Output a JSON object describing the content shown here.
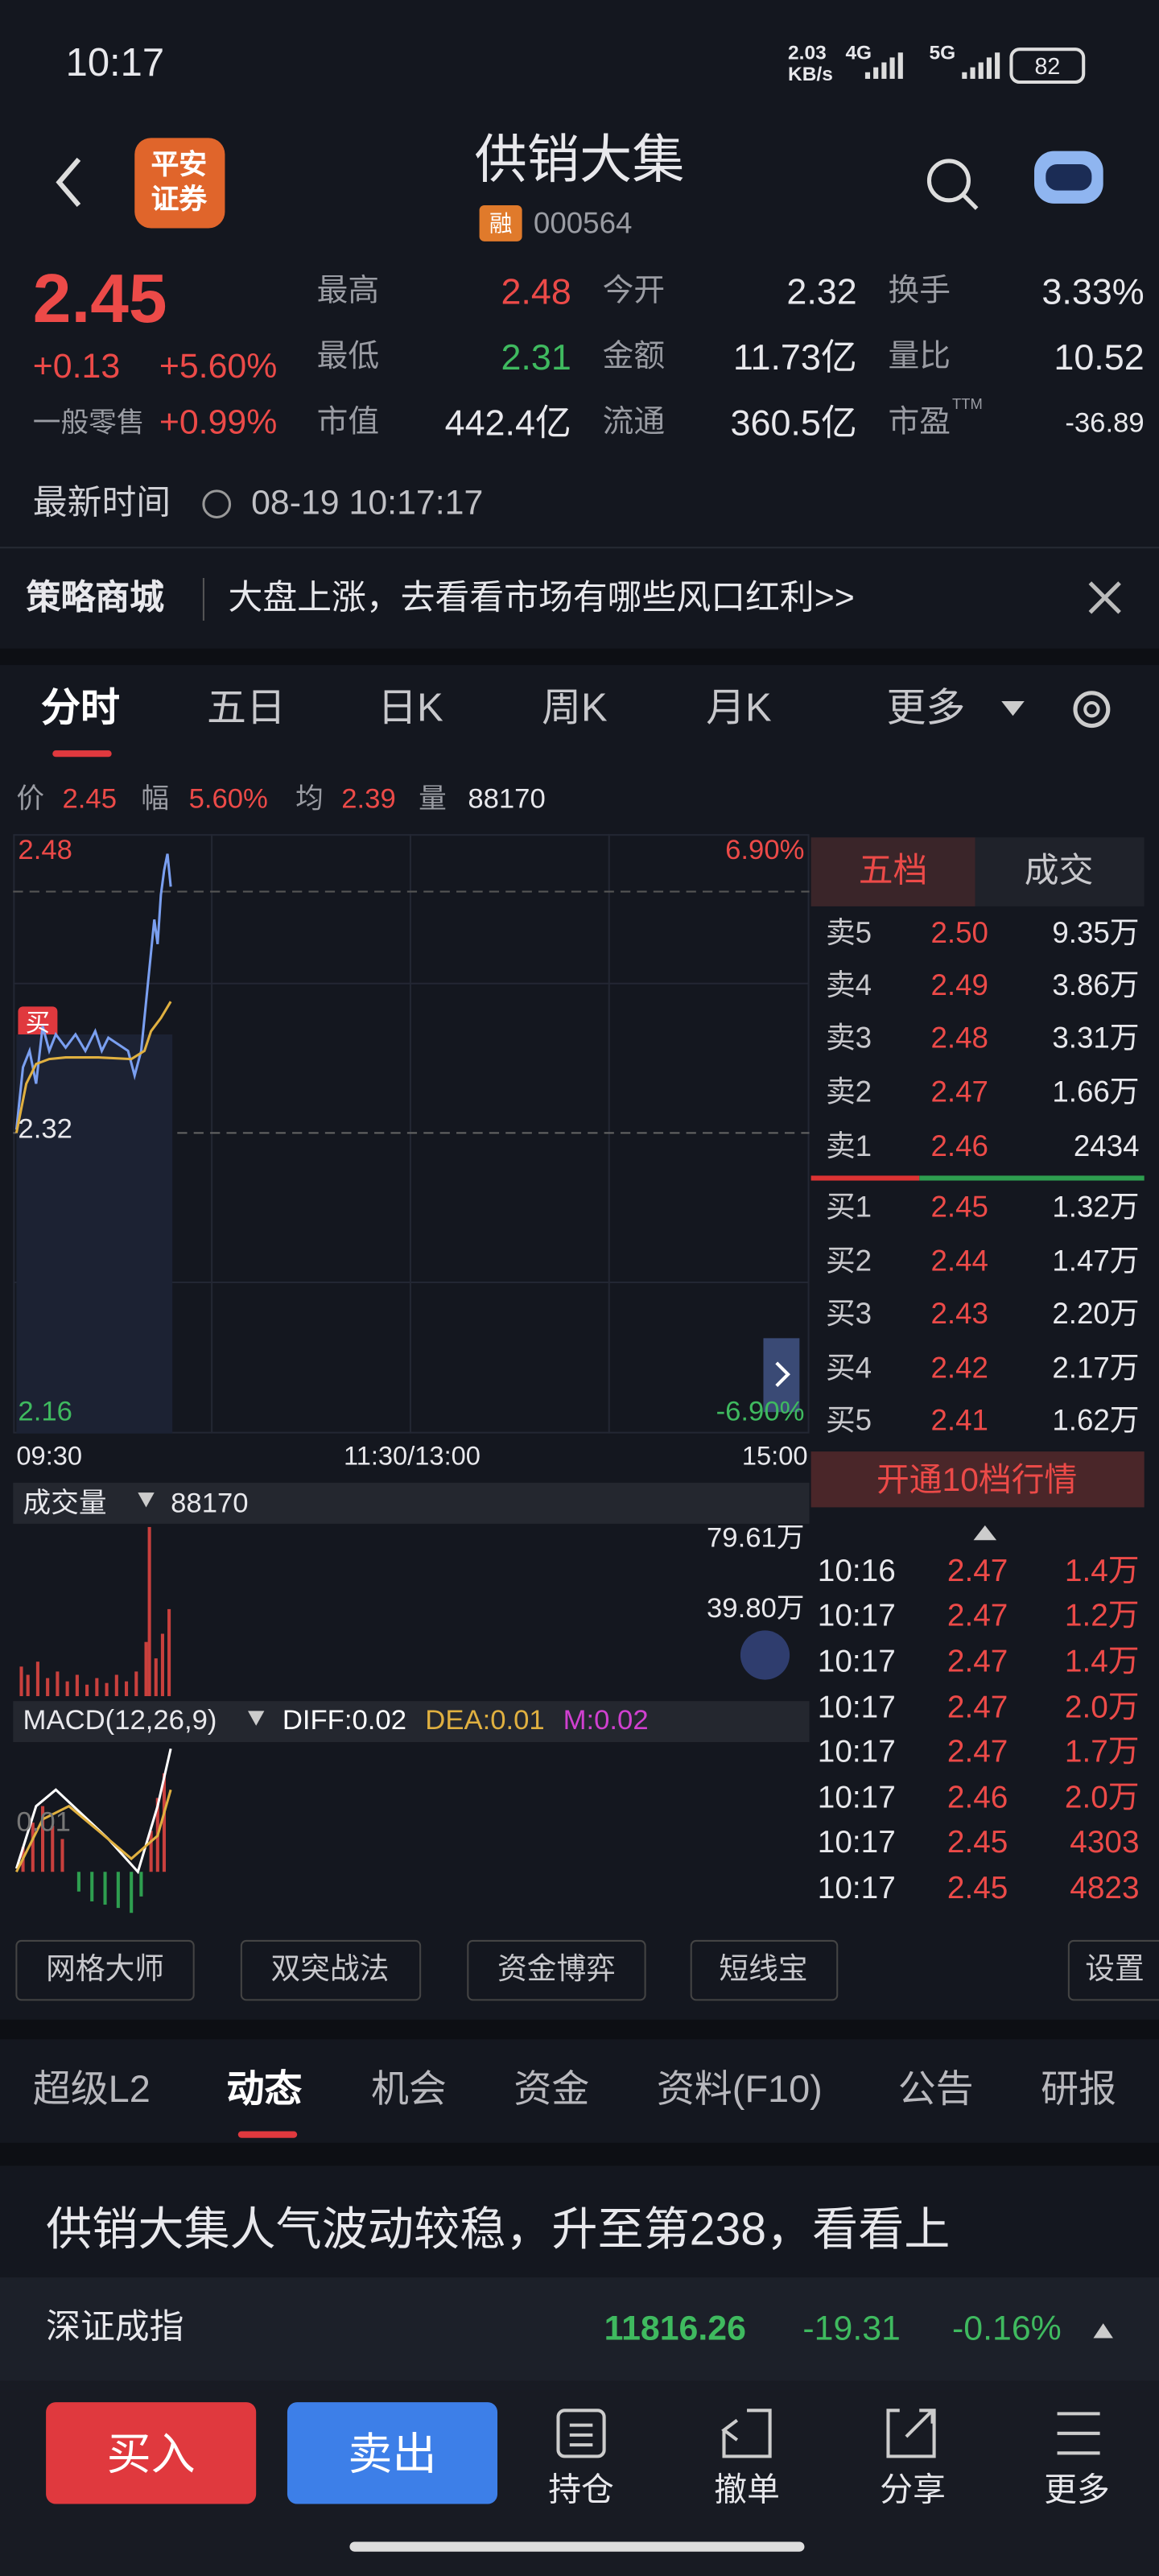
{
  "status_bar": {
    "time": "10:17",
    "net_speed": "2.03",
    "net_unit": "KB/s",
    "signal_a": "4G",
    "signal_b": "5G",
    "battery": "82"
  },
  "header": {
    "broker_line1": "平安",
    "broker_line2": "证券",
    "title": "供销大集",
    "margin_badge": "融",
    "code": "000564"
  },
  "quote": {
    "price": "2.45",
    "change": "+0.13",
    "change_pct": "+5.60%",
    "sector": "一般零售",
    "sector_pct": "+0.99%",
    "stats": [
      {
        "label": "最高",
        "value": "2.48"
      },
      {
        "label": "最低",
        "value": "2.31"
      },
      {
        "label": "市值",
        "value": "442.4亿"
      },
      {
        "label": "今开",
        "value": "2.32"
      },
      {
        "label": "金额",
        "value": "11.73亿"
      },
      {
        "label": "流通",
        "value": "360.5亿"
      },
      {
        "label": "换手",
        "value": "3.33%"
      },
      {
        "label": "量比",
        "value": "10.52"
      },
      {
        "label": "市盈",
        "value": "-36.89",
        "sup": "TTM"
      }
    ],
    "time_label": "最新时间",
    "time": "08-19 10:17:17"
  },
  "banner": {
    "label": "策略商城",
    "text": "大盘上涨，去看看市场有哪些风口红利>>"
  },
  "chart_tabs": [
    "分时",
    "五日",
    "日K",
    "周K",
    "月K",
    "更多"
  ],
  "summary": {
    "price_label": "价",
    "price": "2.45",
    "amp_label": "幅",
    "amp": "5.60%",
    "avg_label": "均",
    "avg": "2.39",
    "vol_label": "量",
    "vol": "88170"
  },
  "intraday": {
    "high": "2.48",
    "high_pct": "6.90%",
    "base": "2.32",
    "low": "2.16",
    "low_pct": "-6.90%",
    "buy_tag": "买",
    "times": [
      "09:30",
      "11:30/13:00",
      "15:00"
    ],
    "volume_label": "成交量",
    "volume": "88170",
    "vol_ticks": [
      "79.61万",
      "39.80万"
    ],
    "macd_label": "MACD(12,26,9)",
    "diff": "DIFF:0.02",
    "dea": "DEA:0.01",
    "m": "M:0.02",
    "macd_tick": "0.01"
  },
  "order_book": {
    "tabs": [
      "五档",
      "成交"
    ],
    "asks": [
      {
        "label": "卖5",
        "price": "2.50",
        "volume": "9.35万"
      },
      {
        "label": "卖4",
        "price": "2.49",
        "volume": "3.86万"
      },
      {
        "label": "卖3",
        "price": "2.48",
        "volume": "3.31万"
      },
      {
        "label": "卖2",
        "price": "2.47",
        "volume": "1.66万"
      },
      {
        "label": "卖1",
        "price": "2.46",
        "volume": "2434"
      }
    ],
    "bids": [
      {
        "label": "买1",
        "price": "2.45",
        "volume": "1.32万"
      },
      {
        "label": "买2",
        "price": "2.44",
        "volume": "1.47万"
      },
      {
        "label": "买3",
        "price": "2.43",
        "volume": "2.20万"
      },
      {
        "label": "买4",
        "price": "2.42",
        "volume": "2.17万"
      },
      {
        "label": "买5",
        "price": "2.41",
        "volume": "1.62万"
      }
    ],
    "upgrade": "开通10档行情",
    "trades": [
      {
        "time": "10:16",
        "price": "2.47",
        "volume": "1.4万"
      },
      {
        "time": "10:17",
        "price": "2.47",
        "volume": "1.2万"
      },
      {
        "time": "10:17",
        "price": "2.47",
        "volume": "1.4万"
      },
      {
        "time": "10:17",
        "price": "2.47",
        "volume": "2.0万"
      },
      {
        "time": "10:17",
        "price": "2.47",
        "volume": "1.7万"
      },
      {
        "time": "10:17",
        "price": "2.46",
        "volume": "2.0万"
      },
      {
        "time": "10:17",
        "price": "2.45",
        "volume": "4303"
      },
      {
        "time": "10:17",
        "price": "2.45",
        "volume": "4823"
      }
    ]
  },
  "tools": [
    "网格大师",
    "双突战法",
    "资金博弈",
    "短线宝",
    "设置"
  ],
  "info_tabs": [
    "超级L2",
    "动态",
    "机会",
    "资金",
    "资料(F10)",
    "公告",
    "研报"
  ],
  "news": "供销大集人气波动较稳，升至第238，看看上",
  "index": {
    "name": "深证成指",
    "value": "11816.26",
    "change": "-19.31",
    "pct": "-0.16%"
  },
  "bottom_bar": {
    "buy": "买入",
    "sell": "卖出",
    "actions": [
      "持仓",
      "撤单",
      "分享",
      "更多"
    ]
  }
}
